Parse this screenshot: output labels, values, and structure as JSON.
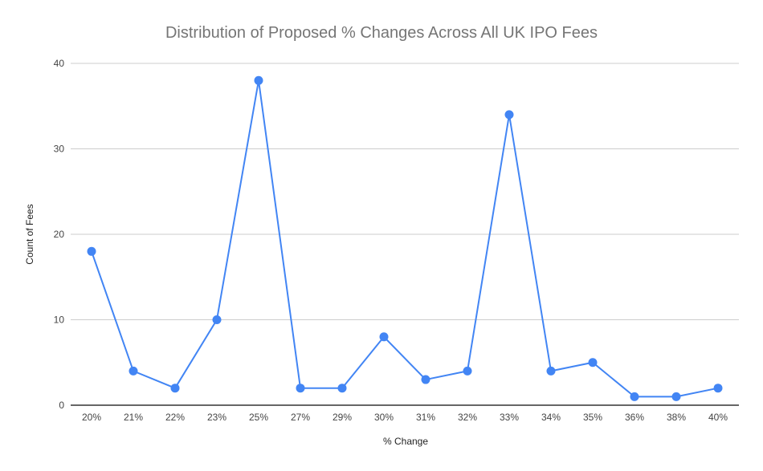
{
  "chart_data": {
    "type": "line",
    "title": "Distribution of Proposed % Changes Across All UK IPO Fees",
    "xlabel": "% Change",
    "ylabel": "Count of Fees",
    "categories": [
      "20%",
      "21%",
      "22%",
      "23%",
      "25%",
      "27%",
      "29%",
      "30%",
      "31%",
      "32%",
      "33%",
      "34%",
      "35%",
      "36%",
      "38%",
      "40%"
    ],
    "series": [
      {
        "name": "Count of Fees",
        "color": "#4285f4",
        "values": [
          18,
          4,
          2,
          10,
          38,
          2,
          2,
          8,
          3,
          4,
          34,
          4,
          5,
          1,
          1,
          2
        ]
      }
    ],
    "ylim": [
      0,
      40
    ],
    "yticks": [
      0,
      10,
      20,
      30,
      40
    ],
    "grid": true,
    "legend": "none"
  }
}
